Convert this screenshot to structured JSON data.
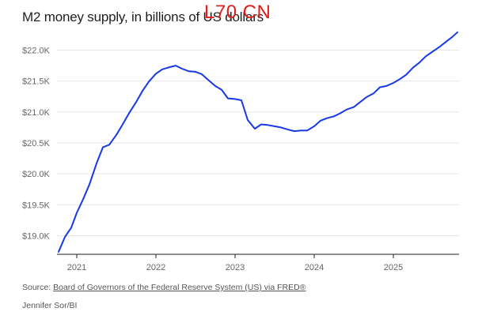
{
  "title": "M2 money supply, in billions of US dollars",
  "watermark": "L70 CN",
  "source_prefix": "Source: ",
  "source_link": "Board of Governors of the Federal Reserve System (US) via FRED®",
  "credit": "Jennifer Sor/BI",
  "colors": {
    "line": "#1738e8",
    "grid": "#e6e6e6",
    "axis": "#222222",
    "watermark": "#e0201b"
  },
  "chart_data": {
    "type": "line",
    "title": "M2 money supply, in billions of US dollars",
    "xlabel": "",
    "ylabel": "",
    "xlim": [
      2020.75,
      2025.83
    ],
    "ylim": [
      18700,
      22300
    ],
    "grid": {
      "horizontal": true,
      "vertical": false
    },
    "x_ticks": [
      {
        "value": 2021,
        "label": "2021"
      },
      {
        "value": 2022,
        "label": "2022"
      },
      {
        "value": 2023,
        "label": "2023"
      },
      {
        "value": 2024,
        "label": "2024"
      },
      {
        "value": 2025,
        "label": "2025"
      }
    ],
    "y_ticks": [
      {
        "value": 19000,
        "label": "$19.0K"
      },
      {
        "value": 19500,
        "label": "$19.5K"
      },
      {
        "value": 20000,
        "label": "$20.0K"
      },
      {
        "value": 20500,
        "label": "$20.5K"
      },
      {
        "value": 21000,
        "label": "$21.0K"
      },
      {
        "value": 21500,
        "label": "$21.5K"
      },
      {
        "value": 22000,
        "label": "$22.0K"
      }
    ],
    "series": [
      {
        "values": [
          [
            2020.77,
            18740
          ],
          [
            2020.85,
            18980
          ],
          [
            2020.93,
            19130
          ],
          [
            2021.0,
            19370
          ],
          [
            2021.08,
            19590
          ],
          [
            2021.16,
            19830
          ],
          [
            2021.25,
            20170
          ],
          [
            2021.33,
            20430
          ],
          [
            2021.41,
            20470
          ],
          [
            2021.5,
            20630
          ],
          [
            2021.58,
            20800
          ],
          [
            2021.66,
            20980
          ],
          [
            2021.75,
            21160
          ],
          [
            2021.83,
            21340
          ],
          [
            2021.91,
            21490
          ],
          [
            2022.0,
            21620
          ],
          [
            2022.08,
            21690
          ],
          [
            2022.16,
            21720
          ],
          [
            2022.25,
            21750
          ],
          [
            2022.33,
            21700
          ],
          [
            2022.41,
            21660
          ],
          [
            2022.5,
            21650
          ],
          [
            2022.58,
            21610
          ],
          [
            2022.66,
            21520
          ],
          [
            2022.75,
            21420
          ],
          [
            2022.83,
            21360
          ],
          [
            2022.91,
            21220
          ],
          [
            2023.0,
            21210
          ],
          [
            2023.08,
            21190
          ],
          [
            2023.16,
            20870
          ],
          [
            2023.25,
            20730
          ],
          [
            2023.33,
            20800
          ],
          [
            2023.41,
            20790
          ],
          [
            2023.5,
            20770
          ],
          [
            2023.58,
            20750
          ],
          [
            2023.66,
            20720
          ],
          [
            2023.75,
            20690
          ],
          [
            2023.83,
            20700
          ],
          [
            2023.91,
            20700
          ],
          [
            2024.0,
            20770
          ],
          [
            2024.08,
            20860
          ],
          [
            2024.16,
            20900
          ],
          [
            2024.25,
            20930
          ],
          [
            2024.33,
            20980
          ],
          [
            2024.41,
            21040
          ],
          [
            2024.5,
            21080
          ],
          [
            2024.58,
            21160
          ],
          [
            2024.66,
            21240
          ],
          [
            2024.75,
            21300
          ],
          [
            2024.83,
            21400
          ],
          [
            2024.91,
            21420
          ],
          [
            2025.0,
            21470
          ],
          [
            2025.08,
            21530
          ],
          [
            2025.16,
            21600
          ],
          [
            2025.25,
            21720
          ],
          [
            2025.33,
            21800
          ],
          [
            2025.41,
            21900
          ],
          [
            2025.5,
            21980
          ],
          [
            2025.58,
            22050
          ],
          [
            2025.66,
            22130
          ],
          [
            2025.75,
            22220
          ],
          [
            2025.81,
            22290
          ]
        ]
      }
    ]
  }
}
